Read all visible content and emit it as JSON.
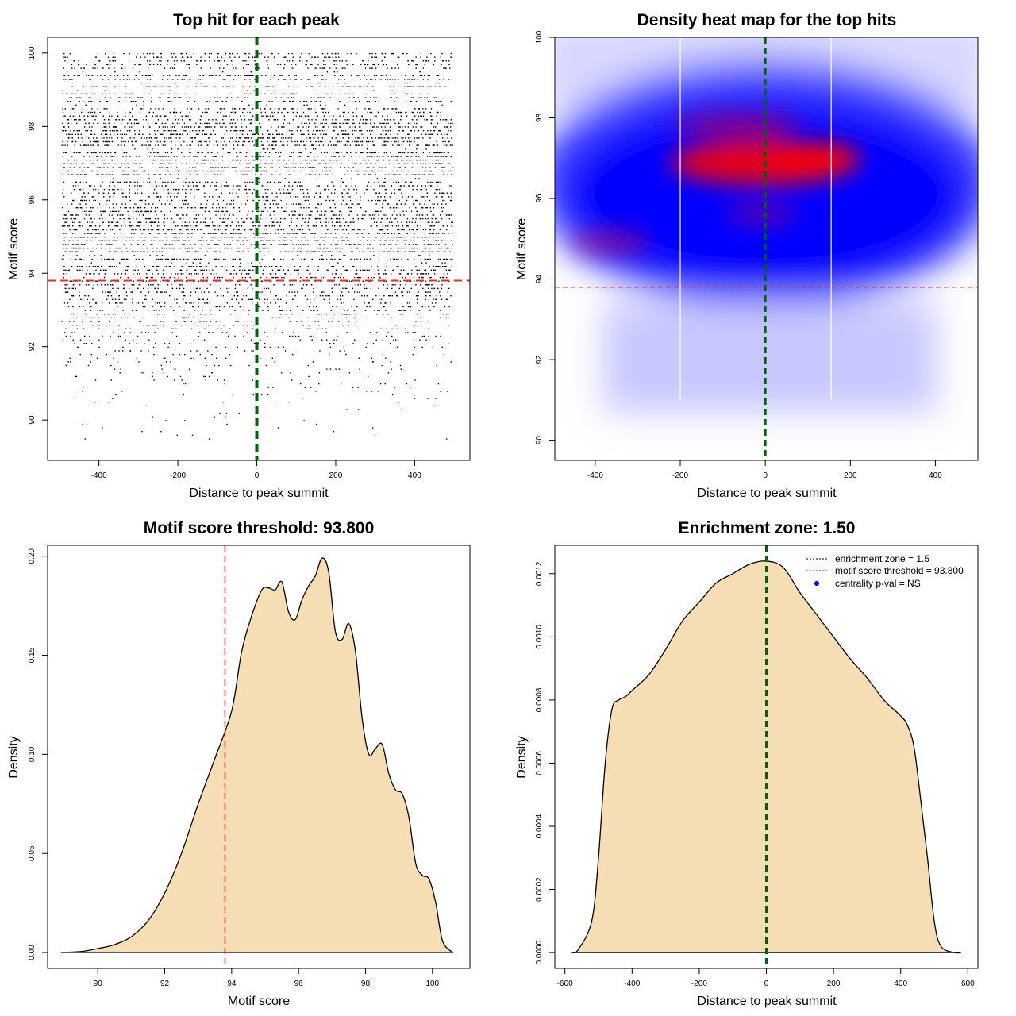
{
  "chart_data": [
    {
      "id": "p1",
      "type": "scatter",
      "title": "Top hit for each peak",
      "xlabel": "Distance to peak summit",
      "ylabel": "Motif score",
      "xlim": [
        -530,
        540
      ],
      "ylim": [
        88.9,
        100.43
      ],
      "xticks": [
        -400,
        -200,
        0,
        200,
        400
      ],
      "yticks": [
        90,
        92,
        94,
        96,
        98,
        100
      ],
      "vline": {
        "x": 0,
        "color": "#006400",
        "style": "dashed"
      },
      "hline": {
        "y": 93.8,
        "color": "#e03030",
        "style": "dashed"
      },
      "points_summary": {
        "x_range": [
          -495,
          495
        ],
        "y_range": [
          89.5,
          100
        ],
        "note": "one point per peak (top hit), very dense above 94"
      }
    },
    {
      "id": "p2",
      "type": "heatmap",
      "title": "Density heat map for the top hits",
      "xlabel": "Distance to peak summit",
      "ylabel": "Motif score",
      "xlim": [
        -495,
        500
      ],
      "ylim": [
        89.5,
        100
      ],
      "xticks": [
        -400,
        -200,
        0,
        200,
        400
      ],
      "yticks": [
        90,
        92,
        94,
        96,
        98,
        100
      ],
      "colormap": [
        "#ffffff",
        "#0000ff",
        "#ff0000"
      ],
      "density_peaks": [
        {
          "x": -20,
          "y": 96.9,
          "level": "high"
        },
        {
          "x": 80,
          "y": 97.0,
          "level": "high"
        },
        {
          "x": -380,
          "y": 94.9,
          "level": "medium"
        },
        {
          "x": 0,
          "y": 95.5,
          "level": "medium"
        }
      ],
      "vline": {
        "x": 0,
        "color": "#006400",
        "style": "dashed"
      },
      "hline": {
        "y": 93.8,
        "color": "#e03030",
        "style": "dashed"
      },
      "white_vlines": [
        -200,
        155
      ]
    },
    {
      "id": "p3",
      "type": "area",
      "title": "Motif score threshold: 93.800",
      "xlabel": "Motif score",
      "ylabel": "Density",
      "xlim": [
        88.5,
        101.12
      ],
      "ylim": [
        -0.008,
        0.2055
      ],
      "xticks": [
        90,
        92,
        94,
        96,
        98,
        100
      ],
      "yticks": [
        0.0,
        0.05,
        0.1,
        0.15,
        0.2
      ],
      "ytick_labels": [
        "0.00",
        "0.05",
        "0.10",
        "0.15",
        "0.20"
      ],
      "fill": "#f5deb3",
      "vline": {
        "x": 93.8,
        "color": "#e03030",
        "style": "dashed"
      },
      "x": [
        88.9,
        89.5,
        90.0,
        90.5,
        91.0,
        91.5,
        92.0,
        92.5,
        93.0,
        93.5,
        94.0,
        94.3,
        94.6,
        94.9,
        95.1,
        95.3,
        95.5,
        95.7,
        95.9,
        96.1,
        96.3,
        96.5,
        96.7,
        96.9,
        97.1,
        97.3,
        97.5,
        97.7,
        97.9,
        98.1,
        98.3,
        98.5,
        98.7,
        98.9,
        99.1,
        99.3,
        99.5,
        99.7,
        99.9,
        100.1,
        100.3,
        100.6
      ],
      "y": [
        0.0,
        0.0005,
        0.002,
        0.004,
        0.008,
        0.016,
        0.03,
        0.05,
        0.075,
        0.098,
        0.122,
        0.152,
        0.17,
        0.183,
        0.184,
        0.183,
        0.187,
        0.172,
        0.168,
        0.178,
        0.185,
        0.19,
        0.199,
        0.192,
        0.162,
        0.158,
        0.166,
        0.152,
        0.118,
        0.1,
        0.103,
        0.105,
        0.09,
        0.082,
        0.08,
        0.068,
        0.045,
        0.039,
        0.037,
        0.025,
        0.006,
        0.0
      ]
    },
    {
      "id": "p4",
      "type": "area",
      "title": "Enrichment zone: 1.50",
      "xlabel": "Distance to peak summit",
      "ylabel": "Density",
      "xlim": [
        -630,
        630
      ],
      "ylim": [
        -5e-05,
        0.00129
      ],
      "xticks": [
        -600,
        -400,
        -200,
        0,
        200,
        400,
        600
      ],
      "yticks": [
        0.0,
        0.0002,
        0.0004,
        0.0006,
        0.0008,
        0.001,
        0.0012
      ],
      "ytick_labels": [
        "0.0000",
        "0.0002",
        "0.0004",
        "0.0006",
        "0.0008",
        "0.0010",
        "0.0012"
      ],
      "fill": "#f5deb3",
      "vline": {
        "x": 0,
        "color": "#006400",
        "style": "dashed"
      },
      "x": [
        -580,
        -560,
        -520,
        -500,
        -480,
        -460,
        -440,
        -420,
        -400,
        -350,
        -300,
        -250,
        -200,
        -150,
        -100,
        -50,
        0,
        50,
        100,
        150,
        200,
        250,
        300,
        350,
        400,
        420,
        440,
        460,
        480,
        500,
        520,
        560,
        580
      ],
      "y": [
        0.0,
        1e-05,
        0.0001,
        0.0003,
        0.0006,
        0.00077,
        0.0008,
        0.00081,
        0.00083,
        0.00088,
        0.00096,
        0.00105,
        0.00111,
        0.00117,
        0.0012,
        0.00123,
        0.00124,
        0.00122,
        0.00114,
        0.00107,
        0.001,
        0.00093,
        0.00087,
        0.0008,
        0.00075,
        0.00072,
        0.00065,
        0.00048,
        0.0003,
        0.0001,
        2e-05,
        0.0,
        0.0
      ],
      "legend": {
        "position": "top-right",
        "entries": [
          {
            "label": "enrichment zone = 1.5",
            "color": "#006400",
            "kind": "dotted-line"
          },
          {
            "label": "motif score threshold = 93.800",
            "color": "#e03030",
            "kind": "dotted-line"
          },
          {
            "label": "centrality p-val = NS",
            "color": "#0000ff",
            "kind": "point"
          }
        ]
      }
    }
  ]
}
